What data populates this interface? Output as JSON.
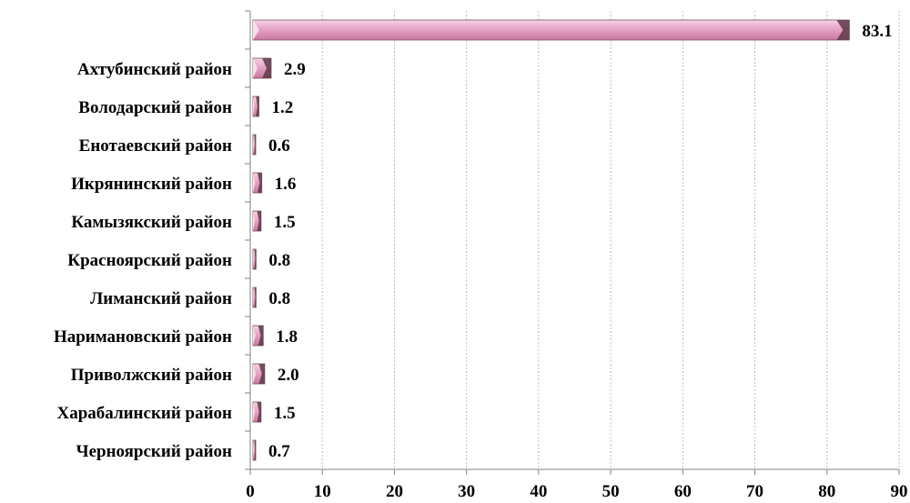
{
  "chart_data": {
    "type": "bar",
    "orientation": "horizontal",
    "style": "3d-beveled",
    "categories": [
      "",
      "Ахтубинский район",
      "Володарский район",
      "Енотаевский район",
      "Икрянинский район",
      "Камызякский район",
      "Красноярский район",
      "Лиманский район",
      "Наримановский район",
      "Приволжский район",
      "Харабалинский район",
      "Черноярский район"
    ],
    "values": [
      83.1,
      2.9,
      1.2,
      0.6,
      1.6,
      1.5,
      0.8,
      0.8,
      1.8,
      2.0,
      1.5,
      0.7
    ],
    "value_labels": [
      "83.1",
      "2.9",
      "1.2",
      "0.6",
      "1.6",
      "1.5",
      "0.8",
      "0.8",
      "1.8",
      "2.0",
      "1.5",
      "0.7"
    ],
    "xlim": [
      0,
      90
    ],
    "x_ticks": [
      "0",
      "10",
      "20",
      "30",
      "40",
      "50",
      "60",
      "70",
      "80",
      "90"
    ],
    "grid": "vertical-dashed",
    "bar_color": "#e7a3c6",
    "bar_shadow_color": "#5a3b48",
    "title": "",
    "xlabel": "",
    "ylabel": ""
  }
}
